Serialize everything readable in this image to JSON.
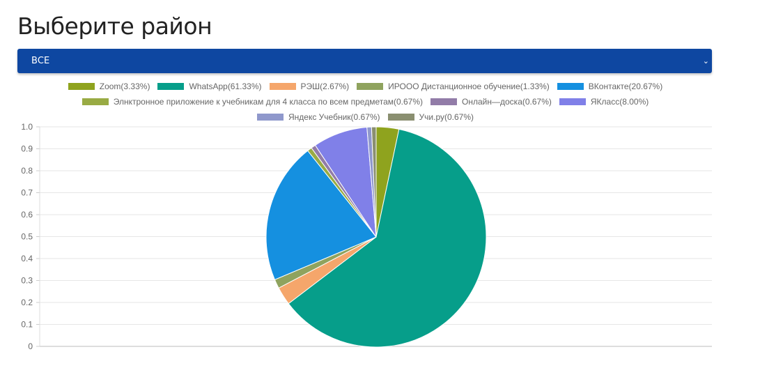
{
  "title": "Выберите район",
  "select": {
    "value": "ВСЕ",
    "chevron": "⌄"
  },
  "chart_data": {
    "type": "pie",
    "categories": [
      "Zoom",
      "WhatsApp",
      "РЭШ",
      "ИРООО Дистанционное обучение",
      "ВКонтакте",
      "Элнктронное приложение к учебникам для 4 класса по всем предметам",
      "Онлайн—доска",
      "ЯКласс",
      "Яндекс Учебник",
      "Учи.ру"
    ],
    "values": [
      3.33,
      61.33,
      2.67,
      1.33,
      20.67,
      0.67,
      0.67,
      8.0,
      0.67,
      0.67
    ],
    "legend_labels": [
      "Zoom(3.33%)",
      "WhatsApp(61.33%)",
      "РЭШ(2.67%)",
      "ИРООО Дистанционное обучение(1.33%)",
      "ВКонтакте(20.67%)",
      "Элнктронное приложение к учебникам для 4 класса по всем предметам(0.67%)",
      "Онлайн—доска(0.67%)",
      "ЯКласс(8.00%)",
      "Яндекс Учебник(0.67%)",
      "Учи.ру(0.67%)"
    ],
    "colors": [
      "#8fa31e",
      "#069e8a",
      "#f5a66b",
      "#8fa35e",
      "#1590e0",
      "#99ab44",
      "#927ca8",
      "#8080e8",
      "#8f98cc",
      "#8a8f70"
    ],
    "yticks": [
      "0",
      "0.1",
      "0.2",
      "0.3",
      "0.4",
      "0.5",
      "0.6",
      "0.7",
      "0.8",
      "0.9",
      "1.0"
    ],
    "ylim": [
      0,
      1
    ],
    "legend_position": "top"
  }
}
